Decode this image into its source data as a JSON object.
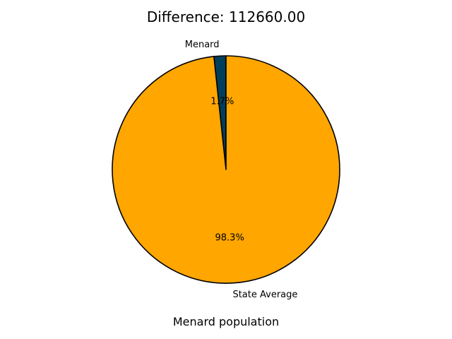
{
  "chart_data": {
    "type": "pie",
    "title": "Difference: 112660.00",
    "xlabel": "Menard population",
    "slices": [
      {
        "label": "Menard",
        "value": 1.7,
        "pct_label": "1.7%",
        "color": "#003f5c"
      },
      {
        "label": "State Average",
        "value": 98.3,
        "pct_label": "98.3%",
        "color": "#ffa600"
      }
    ],
    "start_angle_deg": 90,
    "direction": "counterclockwise",
    "edge_color": "#000000"
  }
}
